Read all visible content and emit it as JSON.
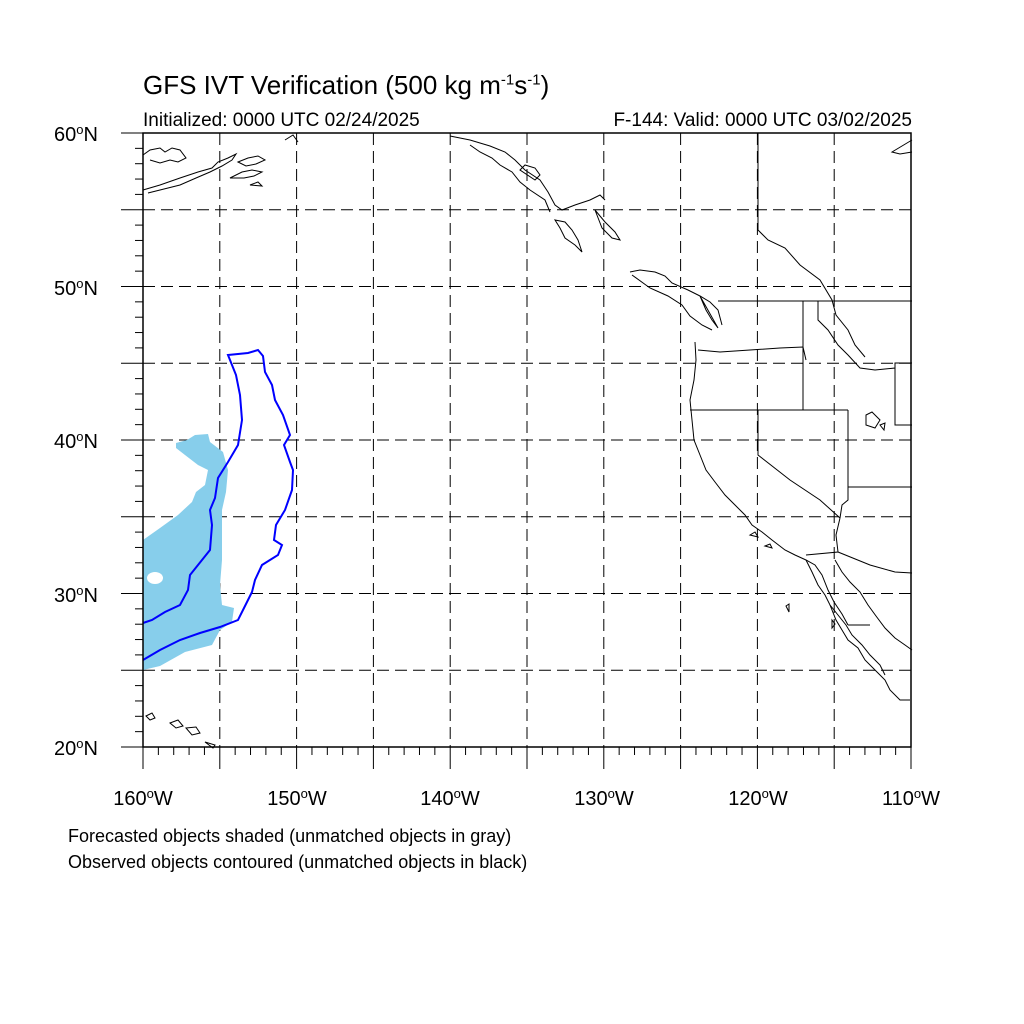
{
  "title": {
    "prefix": "GFS IVT Verification (500 kg m",
    "exp1": "-1",
    "middle": "s",
    "exp2": "-1",
    "suffix": ")"
  },
  "initialized": "Initialized: 0000 UTC 02/24/2025",
  "valid": "F-144: Valid: 0000 UTC 03/02/2025",
  "lat_labels": [
    {
      "value": "60",
      "suffix": "N"
    },
    {
      "value": "50",
      "suffix": "N"
    },
    {
      "value": "40",
      "suffix": "N"
    },
    {
      "value": "30",
      "suffix": "N"
    },
    {
      "value": "20",
      "suffix": "N"
    }
  ],
  "lon_labels": [
    {
      "value": "160",
      "suffix": "W"
    },
    {
      "value": "150",
      "suffix": "W"
    },
    {
      "value": "140",
      "suffix": "W"
    },
    {
      "value": "130",
      "suffix": "W"
    },
    {
      "value": "120",
      "suffix": "W"
    },
    {
      "value": "110",
      "suffix": "W"
    }
  ],
  "footnotes": [
    "Forecasted objects shaded (unmatched objects in gray)",
    "Observed objects contoured (unmatched objects in black)"
  ],
  "map": {
    "lat_range": [
      20,
      60
    ],
    "lon_range": [
      -160,
      -110
    ],
    "gridline_lats": [
      25,
      30,
      35,
      40,
      45,
      50,
      55
    ],
    "gridline_lons": [
      -155,
      -150,
      -145,
      -140,
      -135,
      -130,
      -125,
      -120,
      -115
    ],
    "forecast_fill_color": "#87ceeb",
    "observed_contour_color": "#0000ff",
    "coastline_color": "#000000"
  }
}
